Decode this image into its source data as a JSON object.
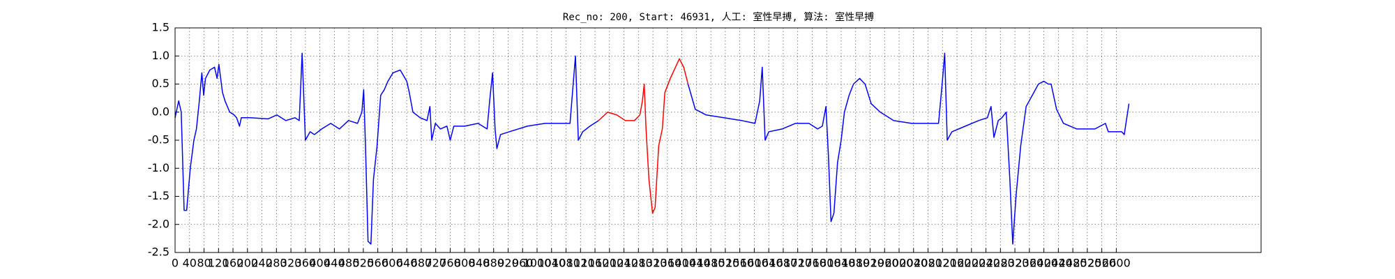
{
  "chart_data": {
    "type": "line",
    "title": "Rec_no: 200, Start: 46931, 人工: 室性早搏, 算法: 室性早搏",
    "xlim": [
      0,
      3000
    ],
    "ylim": [
      -2.5,
      1.5
    ],
    "xticks": [
      0,
      40,
      80,
      120,
      160,
      200,
      240,
      280,
      320,
      360,
      400,
      440,
      480,
      520,
      560,
      600,
      640,
      680,
      720,
      760,
      800,
      840,
      880,
      920,
      960,
      1000,
      1040,
      1080,
      1120,
      1160,
      1200,
      1240,
      1280,
      1320,
      1360,
      1400,
      1440,
      1480,
      1520,
      1560,
      1600,
      1640,
      1680,
      1720,
      1760,
      1800,
      1840,
      1880,
      1920,
      1960,
      2000,
      2040,
      2080,
      2120,
      2160,
      2200,
      2240,
      2280,
      2320,
      2360,
      2400,
      2440,
      2480,
      2520,
      2560,
      2600
    ],
    "yticks": [
      1.5,
      {
        "value": 1,
        "label": "1.0"
      },
      0.5,
      {
        "value": 0,
        "label": "0.0"
      },
      -0.5,
      {
        "value": -1,
        "label": "-1.0"
      },
      -1.5,
      {
        "value": -2,
        "label": "-2.0"
      },
      -2.5
    ],
    "grid": true,
    "series": [
      {
        "color": "#0000ff",
        "x": [
          0,
          10,
          17,
          25,
          32,
          42,
          52,
          59,
          67,
          74,
          79,
          84,
          96,
          109,
          116,
          121,
          131,
          138,
          151,
          163,
          170,
          178,
          183,
          207,
          257,
          281,
          306,
          331,
          343,
          351,
          360,
          373,
          385,
          405,
          430,
          454,
          479,
          504,
          516,
          521,
          526,
          533,
          541,
          548,
          558,
          568,
          578,
          588,
          602,
          622,
          640,
          647,
          657,
          677,
          696,
          704,
          709,
          719,
          733,
          751,
          760,
          770,
          800,
          837,
          862,
          869,
          877,
          884,
          889,
          899,
          923,
          973,
          1022,
          1059,
          1091,
          1106,
          1114,
          1126,
          1146,
          1170
        ],
        "values": [
          -0.1,
          0.2,
          0.0,
          -1.75,
          -1.75,
          -1.0,
          -0.5,
          -0.3,
          0.2,
          0.7,
          0.3,
          0.6,
          0.75,
          0.8,
          0.6,
          0.85,
          0.35,
          0.2,
          0.0,
          -0.05,
          -0.1,
          -0.25,
          -0.1,
          -0.1,
          -0.12,
          -0.05,
          -0.15,
          -0.1,
          -0.15,
          1.05,
          -0.5,
          -0.35,
          -0.4,
          -0.3,
          -0.2,
          -0.3,
          -0.15,
          -0.2,
          0.0,
          0.4,
          -0.6,
          -2.3,
          -2.35,
          -1.2,
          -0.6,
          0.3,
          0.4,
          0.55,
          0.7,
          0.75,
          0.55,
          0.35,
          0.0,
          -0.1,
          -0.15,
          0.1,
          -0.5,
          -0.2,
          -0.3,
          -0.25,
          -0.5,
          -0.25,
          -0.25,
          -0.2,
          -0.3,
          0.2,
          0.7,
          -0.3,
          -0.65,
          -0.4,
          -0.35,
          -0.25,
          -0.2,
          -0.2,
          -0.2,
          1.0,
          -0.5,
          -0.35,
          -0.25,
          -0.15
        ]
      },
      {
        "color": "#ff0000",
        "x": [
          1170,
          1195,
          1220,
          1244,
          1269,
          1284,
          1291,
          1296,
          1301,
          1309,
          1319,
          1326,
          1336,
          1346,
          1353,
          1368,
          1393,
          1405,
          1417
        ],
        "values": [
          -0.15,
          0.0,
          -0.05,
          -0.15,
          -0.15,
          -0.05,
          0.2,
          0.5,
          -0.3,
          -1.2,
          -1.8,
          -1.7,
          -0.6,
          -0.3,
          0.35,
          0.6,
          0.95,
          0.8,
          0.5
        ]
      },
      {
        "color": "#0000ff",
        "x": [
          1417,
          1437,
          1467,
          1516,
          1565,
          1602,
          1615,
          1622,
          1630,
          1640,
          1677,
          1714,
          1751,
          1775,
          1788,
          1798,
          1805,
          1812,
          1820,
          1830,
          1840,
          1849,
          1862,
          1874,
          1891,
          1906,
          1923,
          1948,
          1985,
          2035,
          2084,
          2109,
          2119,
          2126,
          2133,
          2146,
          2183,
          2220,
          2244,
          2254,
          2262,
          2274,
          2284,
          2296,
          2306,
          2314,
          2323,
          2336,
          2351,
          2368,
          2385,
          2400,
          2412,
          2420,
          2435,
          2454,
          2491,
          2541,
          2570,
          2578,
          2615,
          2622,
          2635
        ],
        "values": [
          0.5,
          0.05,
          -0.05,
          -0.1,
          -0.15,
          -0.2,
          0.2,
          0.8,
          -0.5,
          -0.35,
          -0.3,
          -0.2,
          -0.2,
          -0.3,
          -0.25,
          0.1,
          -0.8,
          -1.95,
          -1.8,
          -0.9,
          -0.5,
          0.0,
          0.3,
          0.5,
          0.6,
          0.5,
          0.15,
          0.0,
          -0.15,
          -0.2,
          -0.2,
          -0.2,
          0.5,
          1.05,
          -0.5,
          -0.35,
          -0.25,
          -0.15,
          -0.1,
          0.1,
          -0.45,
          -0.15,
          -0.1,
          0.0,
          -1.2,
          -2.35,
          -1.5,
          -0.6,
          0.1,
          0.3,
          0.5,
          0.55,
          0.5,
          0.5,
          0.05,
          -0.2,
          -0.3,
          -0.3,
          -0.2,
          -0.35,
          -0.35,
          -0.4,
          0.15
        ]
      }
    ]
  }
}
